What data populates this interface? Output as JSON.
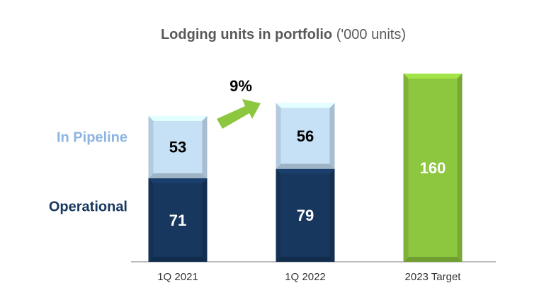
{
  "chart_data": {
    "type": "stacked_bar",
    "title": "Lodging units in portfolio",
    "title_unit": "('000 units)",
    "categories": [
      "1Q 2021",
      "1Q 2022",
      "2023 Target"
    ],
    "series": [
      {
        "name": "Operational",
        "color": "#17375e",
        "values": [
          71,
          79,
          null
        ]
      },
      {
        "name": "In Pipeline",
        "color": "#c6e0f5",
        "values": [
          53,
          56,
          null
        ]
      },
      {
        "color": "#8dc63f",
        "values": [
          null,
          null,
          160
        ]
      }
    ],
    "annotation": "9%"
  }
}
